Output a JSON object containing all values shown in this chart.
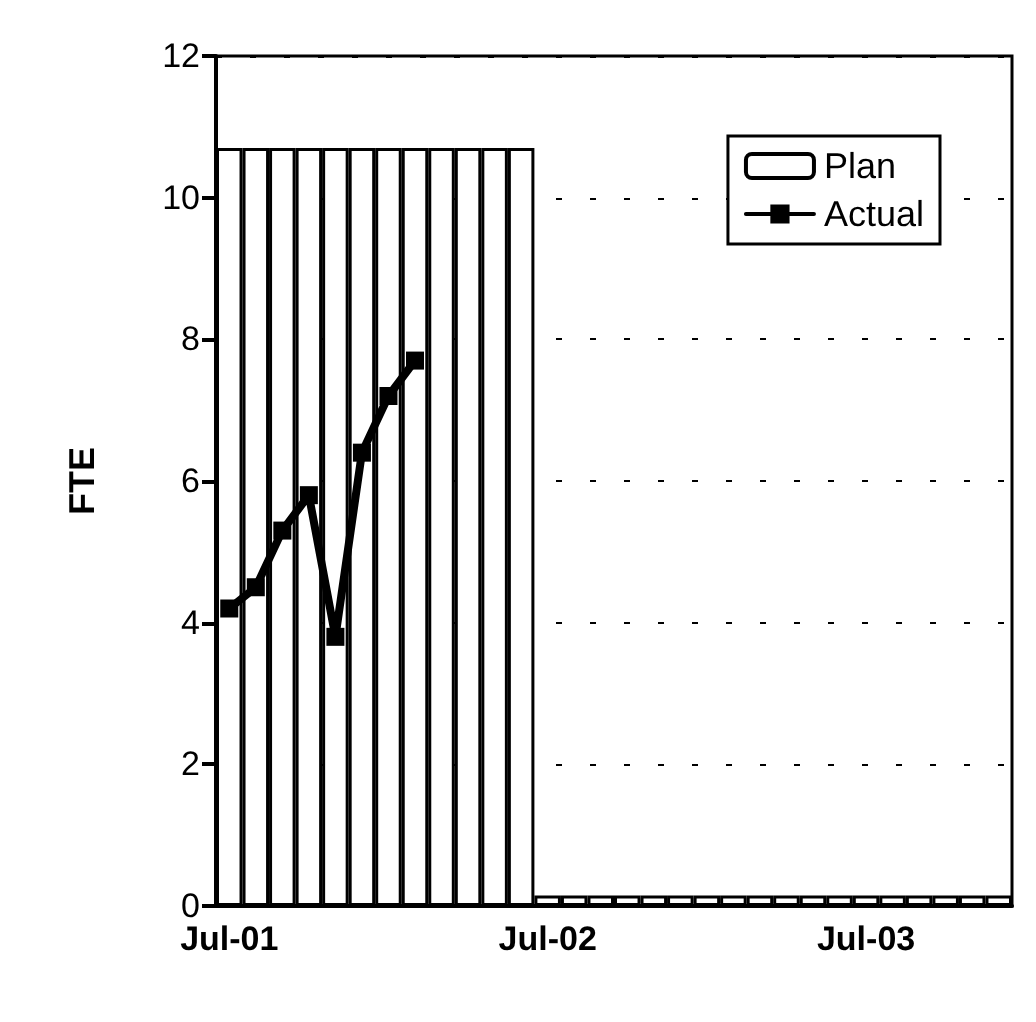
{
  "chart_data": {
    "type": "bar",
    "ylabel": "FTE",
    "categories": [
      "Jul-01",
      null,
      null,
      null,
      null,
      null,
      null,
      null,
      null,
      null,
      null,
      null,
      "Jul-02",
      null,
      null,
      null,
      null,
      null,
      null,
      null,
      null,
      null,
      null,
      null,
      "Jul-03",
      null,
      null,
      null,
      null,
      null
    ],
    "series": [
      {
        "name": "Plan",
        "color": "#ffffff",
        "values": [
          10.7,
          10.7,
          10.7,
          10.7,
          10.7,
          10.7,
          10.7,
          10.7,
          10.7,
          10.7,
          10.7,
          10.7,
          0.15,
          0.15,
          0.15,
          0.15,
          0.15,
          0.15,
          0.15,
          0.15,
          0.15,
          0.15,
          0.15,
          0.15,
          0.15,
          0.15,
          0.15,
          0.15,
          0.15,
          0.15
        ]
      },
      {
        "name": "Actual",
        "type": "line",
        "color": "#000000",
        "marker": "square",
        "line_style": "solid",
        "values": [
          4.2,
          4.5,
          5.3,
          5.8,
          3.8,
          6.4,
          7.2,
          7.7,
          null,
          null,
          null,
          null,
          null,
          null,
          null,
          null,
          null,
          null,
          null,
          null,
          null,
          null,
          null,
          null,
          null,
          null,
          null,
          null,
          null,
          null
        ]
      }
    ],
    "ylim": [
      0,
      12
    ],
    "yticks": [
      0,
      2,
      4,
      6,
      8,
      10,
      12
    ],
    "grid": "y",
    "legend": "top right"
  }
}
